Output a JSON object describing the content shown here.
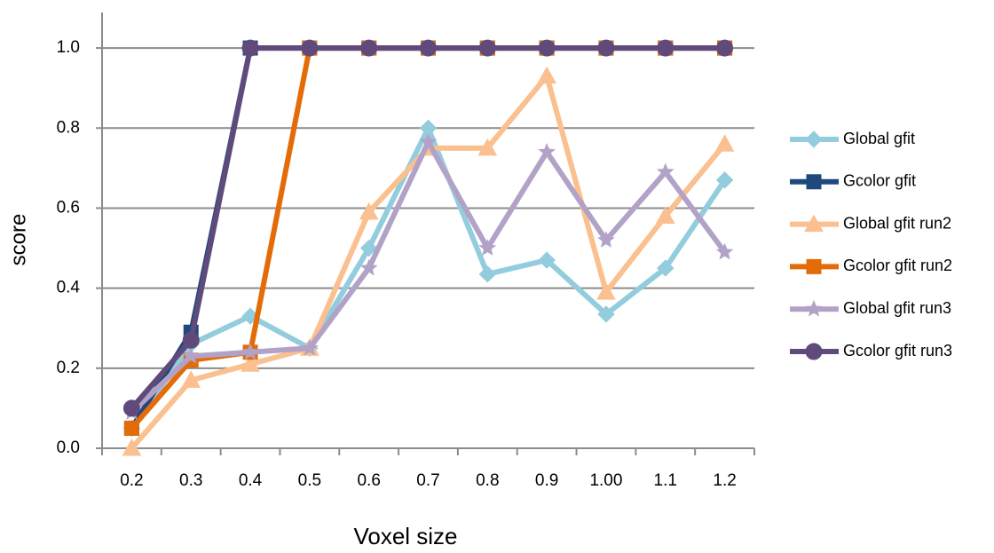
{
  "chart_data": {
    "type": "line",
    "y_label": "score",
    "x_label": "Voxel size",
    "categories": [
      "0.2",
      "0.3",
      "0.4",
      "0.5",
      "0.6",
      "0.7",
      "0.8",
      "0.9",
      "1.00",
      "1.1",
      "1.2"
    ],
    "ylim": [
      0,
      1.1
    ],
    "yticks": [
      {
        "value": 0,
        "label": "0.0"
      },
      {
        "value": 0.2,
        "label": "0.2"
      },
      {
        "value": 0.4,
        "label": "0.4"
      },
      {
        "value": 0.6,
        "label": "0.6"
      },
      {
        "value": 0.8,
        "label": "0.8"
      },
      {
        "value": 1,
        "label": "1.0"
      }
    ],
    "grid": true,
    "legend": "right",
    "series": [
      {
        "name": "Global gfit",
        "color": "#93cddd",
        "marker": "diamond",
        "values": [
          0.05,
          0.26,
          0.33,
          0.25,
          0.5,
          0.8,
          0.435,
          0.47,
          0.335,
          0.45,
          0.67
        ]
      },
      {
        "name": "Gcolor gfit",
        "color": "#1f497d",
        "marker": "square",
        "values": [
          0.05,
          0.29,
          1,
          1,
          1,
          1,
          1,
          1,
          1,
          1,
          1
        ]
      },
      {
        "name": "Global gfit run2",
        "color": "#fac090",
        "marker": "triangle",
        "values": [
          0,
          0.17,
          0.21,
          0.25,
          0.59,
          0.75,
          0.75,
          0.93,
          0.39,
          0.58,
          0.76
        ]
      },
      {
        "name": "Gcolor gfit run2",
        "color": "#e36c09",
        "marker": "x",
        "values": [
          0.05,
          0.22,
          0.24,
          1,
          1,
          1,
          1,
          1,
          1,
          1,
          1
        ]
      },
      {
        "name": "Global gfit run3",
        "color": "#b3a2c7",
        "marker": "star",
        "values": [
          0.09,
          0.23,
          0.24,
          0.25,
          0.45,
          0.765,
          0.5,
          0.74,
          0.52,
          0.69,
          0.49
        ]
      },
      {
        "name": "Gcolor gfit run3",
        "color": "#604a7b",
        "marker": "circle",
        "values": [
          0.1,
          0.27,
          1,
          1,
          1,
          1,
          1,
          1,
          1,
          1,
          1
        ]
      }
    ]
  }
}
